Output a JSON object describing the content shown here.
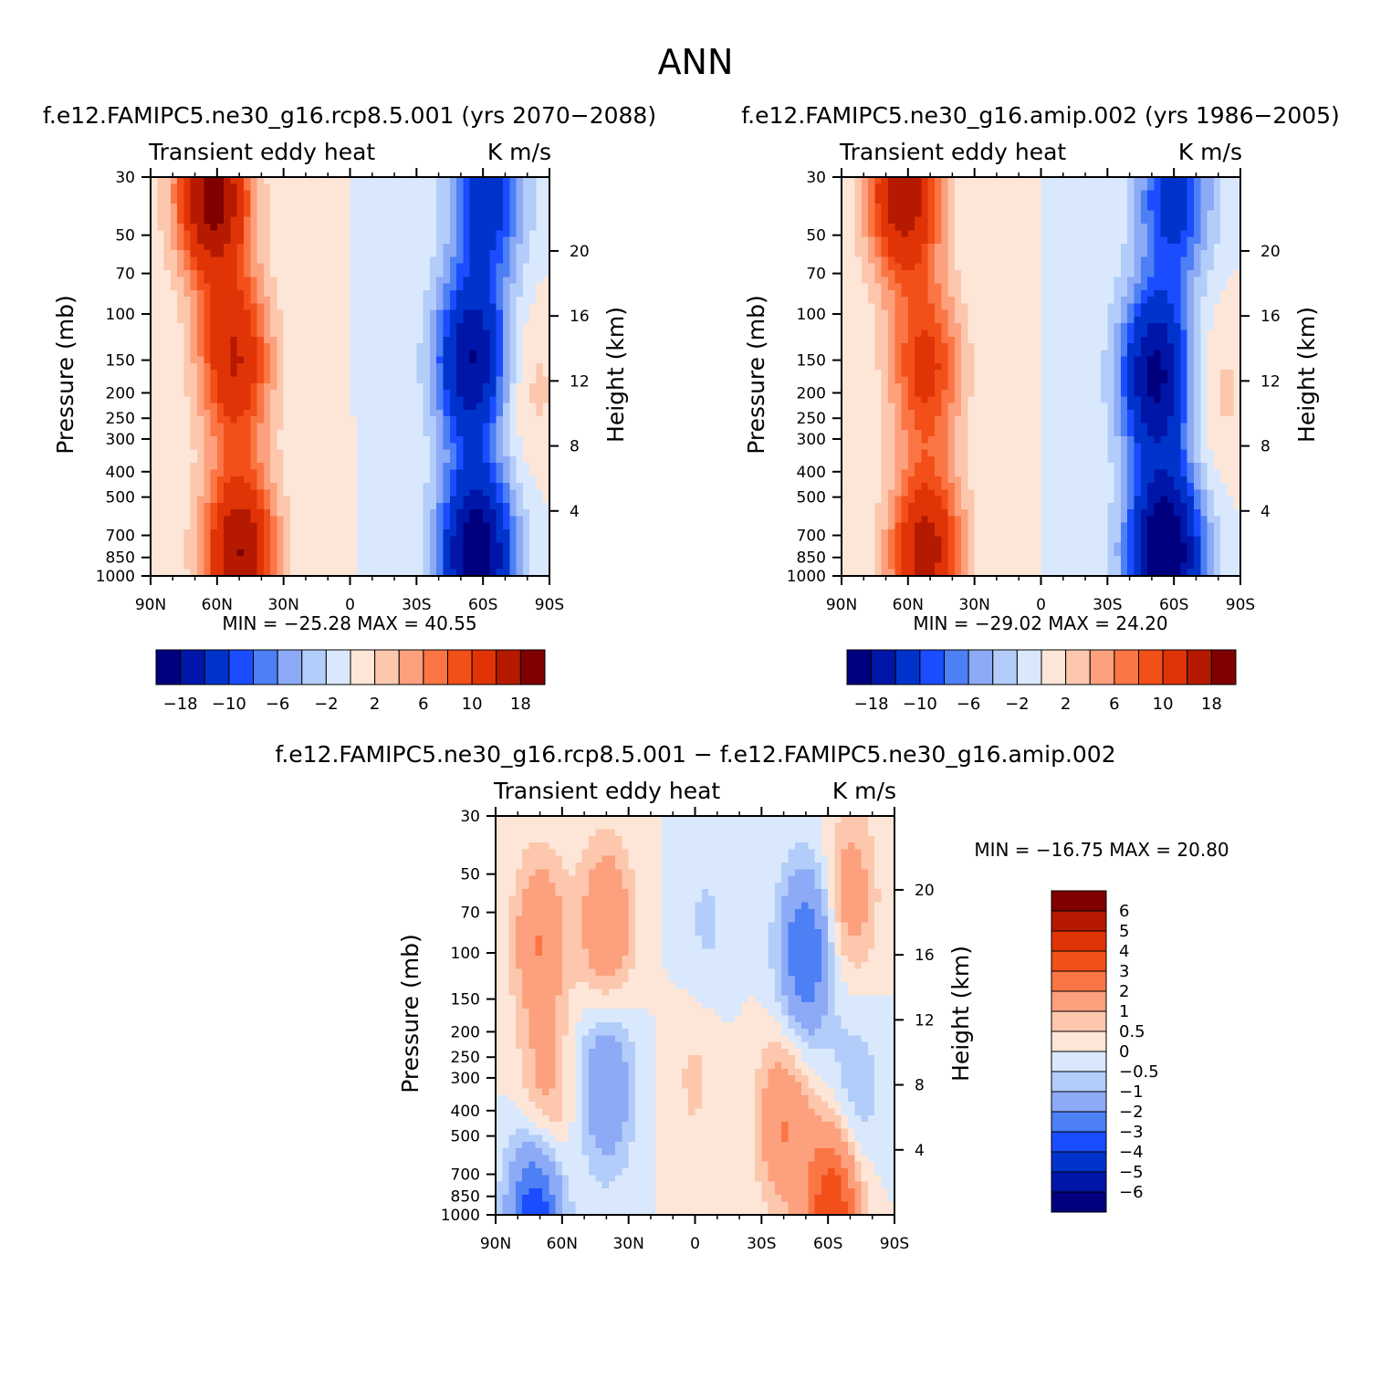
{
  "page_title": "ANN",
  "colors": {
    "abs_scale": [
      "#00007f",
      "#0016a8",
      "#0033cc",
      "#1a4dff",
      "#4d7ff5",
      "#8caaf5",
      "#b3cdfa",
      "#d9e8fc",
      "#fde6d7",
      "#fcc7ad",
      "#fca07d",
      "#fb7545",
      "#f24f19",
      "#e03306",
      "#b51a00",
      "#800000"
    ],
    "diff_scale": [
      "#00007f",
      "#0016a8",
      "#0033cc",
      "#1a4dff",
      "#4d7ff5",
      "#8caaf5",
      "#b3cdfa",
      "#d9e8fc",
      "#fde6d7",
      "#fcc7ad",
      "#fca07d",
      "#fb7545",
      "#f24f19",
      "#e03306",
      "#b51a00",
      "#800000"
    ]
  },
  "chart_data": [
    {
      "type": "heatmap",
      "title": "f.e12.FAMIPC5.ne30_g16.rcp8.5.001 (yrs 2070-2088)",
      "subtitle_left": "Transient eddy heat",
      "subtitle_right": "K m/s",
      "ylabel": "Pressure (mb)",
      "ylabel_right": "Height (km)",
      "x_ticks": [
        "90N",
        "60N",
        "30N",
        "0",
        "30S",
        "60S",
        "90S"
      ],
      "x_values": [
        90,
        60,
        30,
        0,
        -30,
        -60,
        -90
      ],
      "y_ticks": [
        30,
        50,
        70,
        100,
        150,
        200,
        250,
        300,
        400,
        500,
        700,
        850,
        1000
      ],
      "y_scale": "log",
      "y_range": [
        30,
        1000
      ],
      "height_ticks": [
        20,
        16,
        12,
        8,
        4
      ],
      "min_label": "MIN = -25.28",
      "max_label": "MAX =  40.55",
      "min": -25.28,
      "max": 40.55,
      "colorbar_labels": [
        "-18",
        "-10",
        "-6",
        "-2",
        "2",
        "6",
        "10",
        "18"
      ],
      "features": [
        {
          "lat": 62,
          "p": 35,
          "value": 20
        },
        {
          "lat": 52,
          "p": 150,
          "value": 14
        },
        {
          "lat": 50,
          "p": 820,
          "value": 18
        },
        {
          "lat": -55,
          "p": 150,
          "value": -18
        },
        {
          "lat": -57,
          "p": 820,
          "value": -22
        },
        {
          "lat": -62,
          "p": 35,
          "value": -12
        },
        {
          "lat": -80,
          "p": 190,
          "value": 3
        }
      ]
    },
    {
      "type": "heatmap",
      "title": "f.e12.FAMIPC5.ne30_g16.amip.002 (yrs 1986-2005)",
      "subtitle_left": "Transient eddy heat",
      "subtitle_right": "K m/s",
      "ylabel": "Pressure (mb)",
      "ylabel_right": "Height (km)",
      "x_ticks": [
        "90N",
        "60N",
        "30N",
        "0",
        "30S",
        "60S",
        "90S"
      ],
      "x_values": [
        90,
        60,
        30,
        0,
        -30,
        -60,
        -90
      ],
      "y_ticks": [
        30,
        50,
        70,
        100,
        150,
        200,
        250,
        300,
        400,
        500,
        700,
        850,
        1000
      ],
      "y_scale": "log",
      "y_range": [
        30,
        1000
      ],
      "height_ticks": [
        20,
        16,
        12,
        8,
        4
      ],
      "min_label": "MIN = -29.02",
      "max_label": "MAX =  24.20",
      "min": -29.02,
      "max": 24.2,
      "colorbar_labels": [
        "-18",
        "-10",
        "-6",
        "-2",
        "2",
        "6",
        "10",
        "18"
      ],
      "features": [
        {
          "lat": 62,
          "p": 35,
          "value": 17
        },
        {
          "lat": 52,
          "p": 160,
          "value": 11
        },
        {
          "lat": 52,
          "p": 820,
          "value": 16
        },
        {
          "lat": -52,
          "p": 170,
          "value": -19
        },
        {
          "lat": -56,
          "p": 820,
          "value": -24
        },
        {
          "lat": -60,
          "p": 35,
          "value": -12
        },
        {
          "lat": -78,
          "p": 200,
          "value": 3
        }
      ]
    },
    {
      "type": "heatmap",
      "title": "f.e12.FAMIPC5.ne30_g16.rcp8.5.001 - f.e12.FAMIPC5.ne30_g16.amip.002",
      "subtitle_left": "Transient eddy heat",
      "subtitle_right": "K m/s",
      "ylabel": "Pressure (mb)",
      "ylabel_right": "Height (km)",
      "x_ticks": [
        "90N",
        "60N",
        "30N",
        "0",
        "30S",
        "60S",
        "90S"
      ],
      "x_values": [
        90,
        60,
        30,
        0,
        -30,
        -60,
        -90
      ],
      "y_ticks": [
        30,
        50,
        70,
        100,
        150,
        200,
        250,
        300,
        400,
        500,
        700,
        850,
        1000
      ],
      "y_scale": "log",
      "y_range": [
        30,
        1000
      ],
      "height_ticks": [
        20,
        16,
        12,
        8,
        4
      ],
      "min_label": "MIN = -16.75",
      "max_label": "MAX =  20.80",
      "min": -16.75,
      "max": 20.8,
      "colorbar_labels": [
        "6",
        "5",
        "4",
        "3",
        "2",
        "1",
        "0.5",
        "0",
        "-0.5",
        "-1",
        "-2",
        "-3",
        "-4",
        "-5",
        "-6"
      ],
      "features": [
        {
          "lat": 70,
          "p": 90,
          "value": 2
        },
        {
          "lat": 40,
          "p": 80,
          "value": 2
        },
        {
          "lat": 40,
          "p": 320,
          "value": -2
        },
        {
          "lat": 68,
          "p": 400,
          "value": 1.5
        },
        {
          "lat": 72,
          "p": 980,
          "value": -4
        },
        {
          "lat": -50,
          "p": 100,
          "value": -3
        },
        {
          "lat": -40,
          "p": 450,
          "value": 2
        },
        {
          "lat": -72,
          "p": 350,
          "value": -1
        },
        {
          "lat": -70,
          "p": 60,
          "value": 1.5
        },
        {
          "lat": -62,
          "p": 980,
          "value": 4
        },
        {
          "lat": 0,
          "p": 300,
          "value": 0.6
        },
        {
          "lat": -5,
          "p": 80,
          "value": -0.6
        }
      ]
    }
  ]
}
